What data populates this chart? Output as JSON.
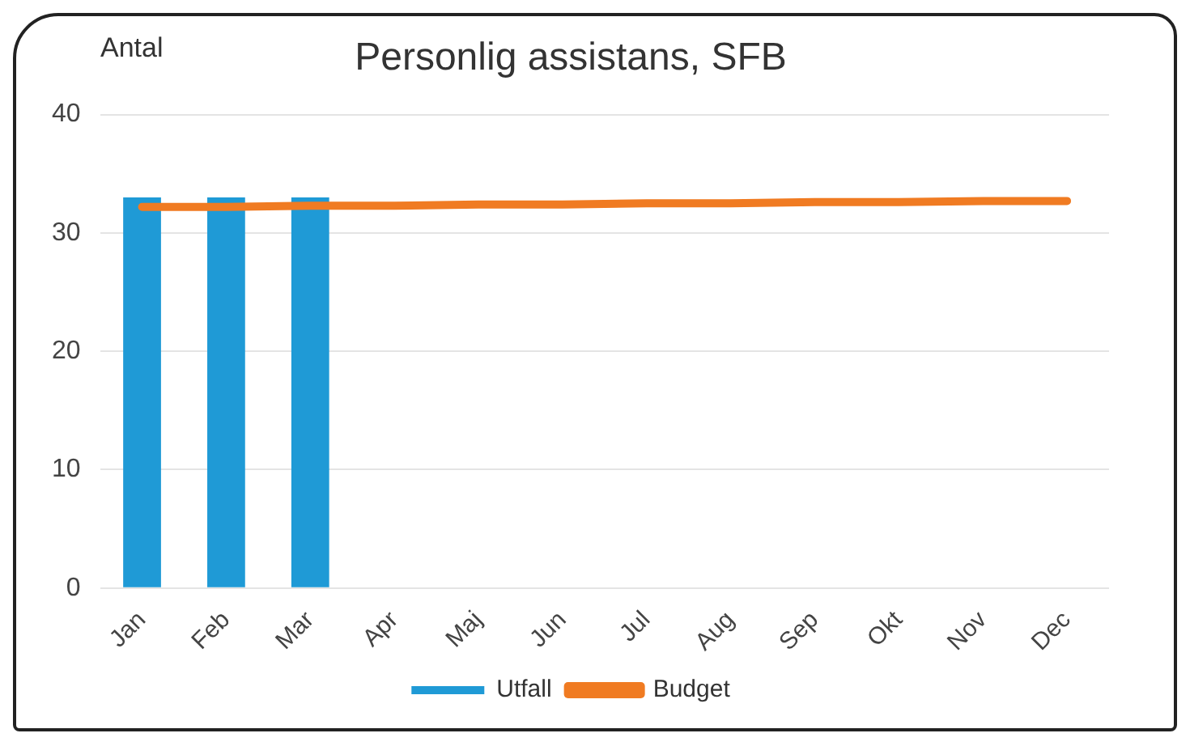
{
  "chart_data": {
    "type": "bar",
    "title": "Personlig assistans, SFB",
    "ylabel": "Antal",
    "categories": [
      "Jan",
      "Feb",
      "Mar",
      "Apr",
      "Maj",
      "Jun",
      "Jul",
      "Aug",
      "Sep",
      "Okt",
      "Nov",
      "Dec"
    ],
    "series": [
      {
        "name": "Utfall",
        "color": "#1f9ad6",
        "values": [
          33,
          33,
          33,
          null,
          null,
          null,
          null,
          null,
          null,
          null,
          null,
          null
        ]
      },
      {
        "name": "Budget",
        "type": "line",
        "color": "#f07b22",
        "values": [
          32.2,
          32.2,
          32.3,
          32.3,
          32.4,
          32.4,
          32.5,
          32.5,
          32.6,
          32.6,
          32.7,
          32.7
        ]
      }
    ],
    "ylim": [
      0,
      40
    ],
    "yticks": [
      0,
      10,
      20,
      30,
      40
    ],
    "grid": "y",
    "legend": "bottom",
    "marker": "none"
  }
}
